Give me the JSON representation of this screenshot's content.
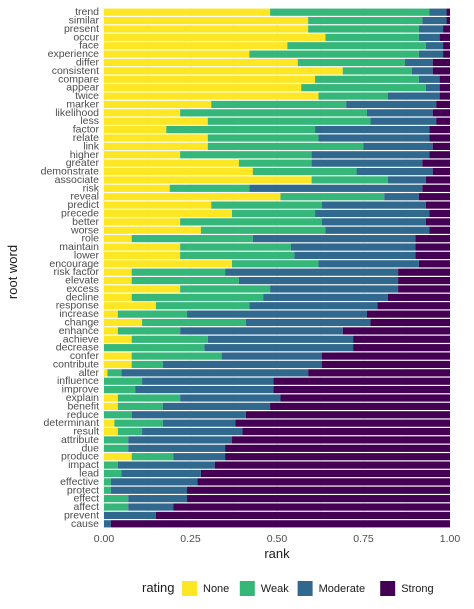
{
  "chart_data": {
    "type": "bar",
    "orientation": "horizontal",
    "stacked": true,
    "xlabel": "rank",
    "ylabel": "root word",
    "xlim": [
      0,
      1
    ],
    "x_ticks": [
      "0.00",
      "0.25",
      "0.50",
      "0.75",
      "1.00"
    ],
    "grid": true,
    "legend": {
      "title": "rating",
      "position": "bottom"
    },
    "colors": {
      "None": "#FDE725",
      "Weak": "#35B779",
      "Moderate": "#31688E",
      "Strong": "#440154"
    },
    "categories": [
      "trend",
      "similar",
      "present",
      "occur",
      "face",
      "experience",
      "differ",
      "consistent",
      "compare",
      "appear",
      "twice",
      "marker",
      "likelihood",
      "less",
      "factor",
      "relate",
      "link",
      "higher",
      "greater",
      "demonstrate",
      "associate",
      "risk",
      "reveal",
      "predict",
      "precede",
      "better",
      "worse",
      "role",
      "maintain",
      "lower",
      "encourage",
      "risk factor",
      "elevate",
      "excess",
      "decline",
      "response",
      "increase",
      "change",
      "enhance",
      "achieve",
      "decrease",
      "confer",
      "contribute",
      "alter",
      "influence",
      "improve",
      "explain",
      "benefit",
      "reduce",
      "determinant",
      "result",
      "attribute",
      "due",
      "produce",
      "impact",
      "lead",
      "effective",
      "protect",
      "effect",
      "affect",
      "prevent",
      "cause"
    ],
    "series": [
      {
        "name": "None",
        "values": [
          0.48,
          0.59,
          0.59,
          0.64,
          0.53,
          0.42,
          0.56,
          0.69,
          0.61,
          0.57,
          0.62,
          0.31,
          0.22,
          0.3,
          0.18,
          0.3,
          0.3,
          0.22,
          0.39,
          0.43,
          0.6,
          0.19,
          0.51,
          0.31,
          0.37,
          0.22,
          0.28,
          0.08,
          0.22,
          0.22,
          0.37,
          0.08,
          0.08,
          0.22,
          0.08,
          0.15,
          0.04,
          0.11,
          0.04,
          0.08,
          0.0,
          0.08,
          0.08,
          0.01,
          0.0,
          0.0,
          0.04,
          0.04,
          0.0,
          0.03,
          0.04,
          0.0,
          0.0,
          0.08,
          0.0,
          0.0,
          0.0,
          0.0,
          0.0,
          0.0,
          0.0,
          0.0
        ]
      },
      {
        "name": "Weak",
        "values": [
          0.46,
          0.33,
          0.32,
          0.27,
          0.4,
          0.49,
          0.31,
          0.2,
          0.3,
          0.36,
          0.2,
          0.39,
          0.54,
          0.47,
          0.43,
          0.32,
          0.45,
          0.38,
          0.21,
          0.3,
          0.22,
          0.23,
          0.3,
          0.32,
          0.24,
          0.41,
          0.36,
          0.35,
          0.32,
          0.33,
          0.25,
          0.27,
          0.31,
          0.26,
          0.38,
          0.27,
          0.2,
          0.3,
          0.18,
          0.22,
          0.29,
          0.26,
          0.09,
          0.04,
          0.11,
          0.09,
          0.18,
          0.13,
          0.08,
          0.14,
          0.07,
          0.07,
          0.07,
          0.12,
          0.04,
          0.05,
          0.02,
          0.02,
          0.07,
          0.07,
          0.0,
          0.0
        ]
      },
      {
        "name": "Moderate",
        "values": [
          0.05,
          0.07,
          0.07,
          0.06,
          0.05,
          0.07,
          0.08,
          0.06,
          0.06,
          0.04,
          0.15,
          0.26,
          0.19,
          0.19,
          0.33,
          0.32,
          0.2,
          0.34,
          0.32,
          0.22,
          0.11,
          0.5,
          0.1,
          0.3,
          0.33,
          0.3,
          0.3,
          0.47,
          0.36,
          0.35,
          0.29,
          0.5,
          0.46,
          0.37,
          0.36,
          0.37,
          0.52,
          0.36,
          0.47,
          0.42,
          0.43,
          0.29,
          0.46,
          0.54,
          0.38,
          0.4,
          0.29,
          0.31,
          0.33,
          0.21,
          0.29,
          0.3,
          0.28,
          0.15,
          0.28,
          0.23,
          0.25,
          0.22,
          0.17,
          0.13,
          0.15,
          0.02
        ]
      },
      {
        "name": "Strong",
        "values": [
          0.01,
          0.01,
          0.02,
          0.03,
          0.02,
          0.02,
          0.05,
          0.05,
          0.03,
          0.03,
          0.03,
          0.04,
          0.05,
          0.04,
          0.06,
          0.06,
          0.05,
          0.06,
          0.08,
          0.05,
          0.07,
          0.08,
          0.09,
          0.07,
          0.06,
          0.07,
          0.06,
          0.1,
          0.1,
          0.1,
          0.09,
          0.15,
          0.15,
          0.15,
          0.18,
          0.21,
          0.24,
          0.23,
          0.31,
          0.28,
          0.28,
          0.37,
          0.37,
          0.41,
          0.51,
          0.51,
          0.49,
          0.52,
          0.59,
          0.62,
          0.6,
          0.63,
          0.65,
          0.65,
          0.68,
          0.72,
          0.73,
          0.76,
          0.76,
          0.8,
          0.85,
          0.98
        ]
      }
    ]
  }
}
